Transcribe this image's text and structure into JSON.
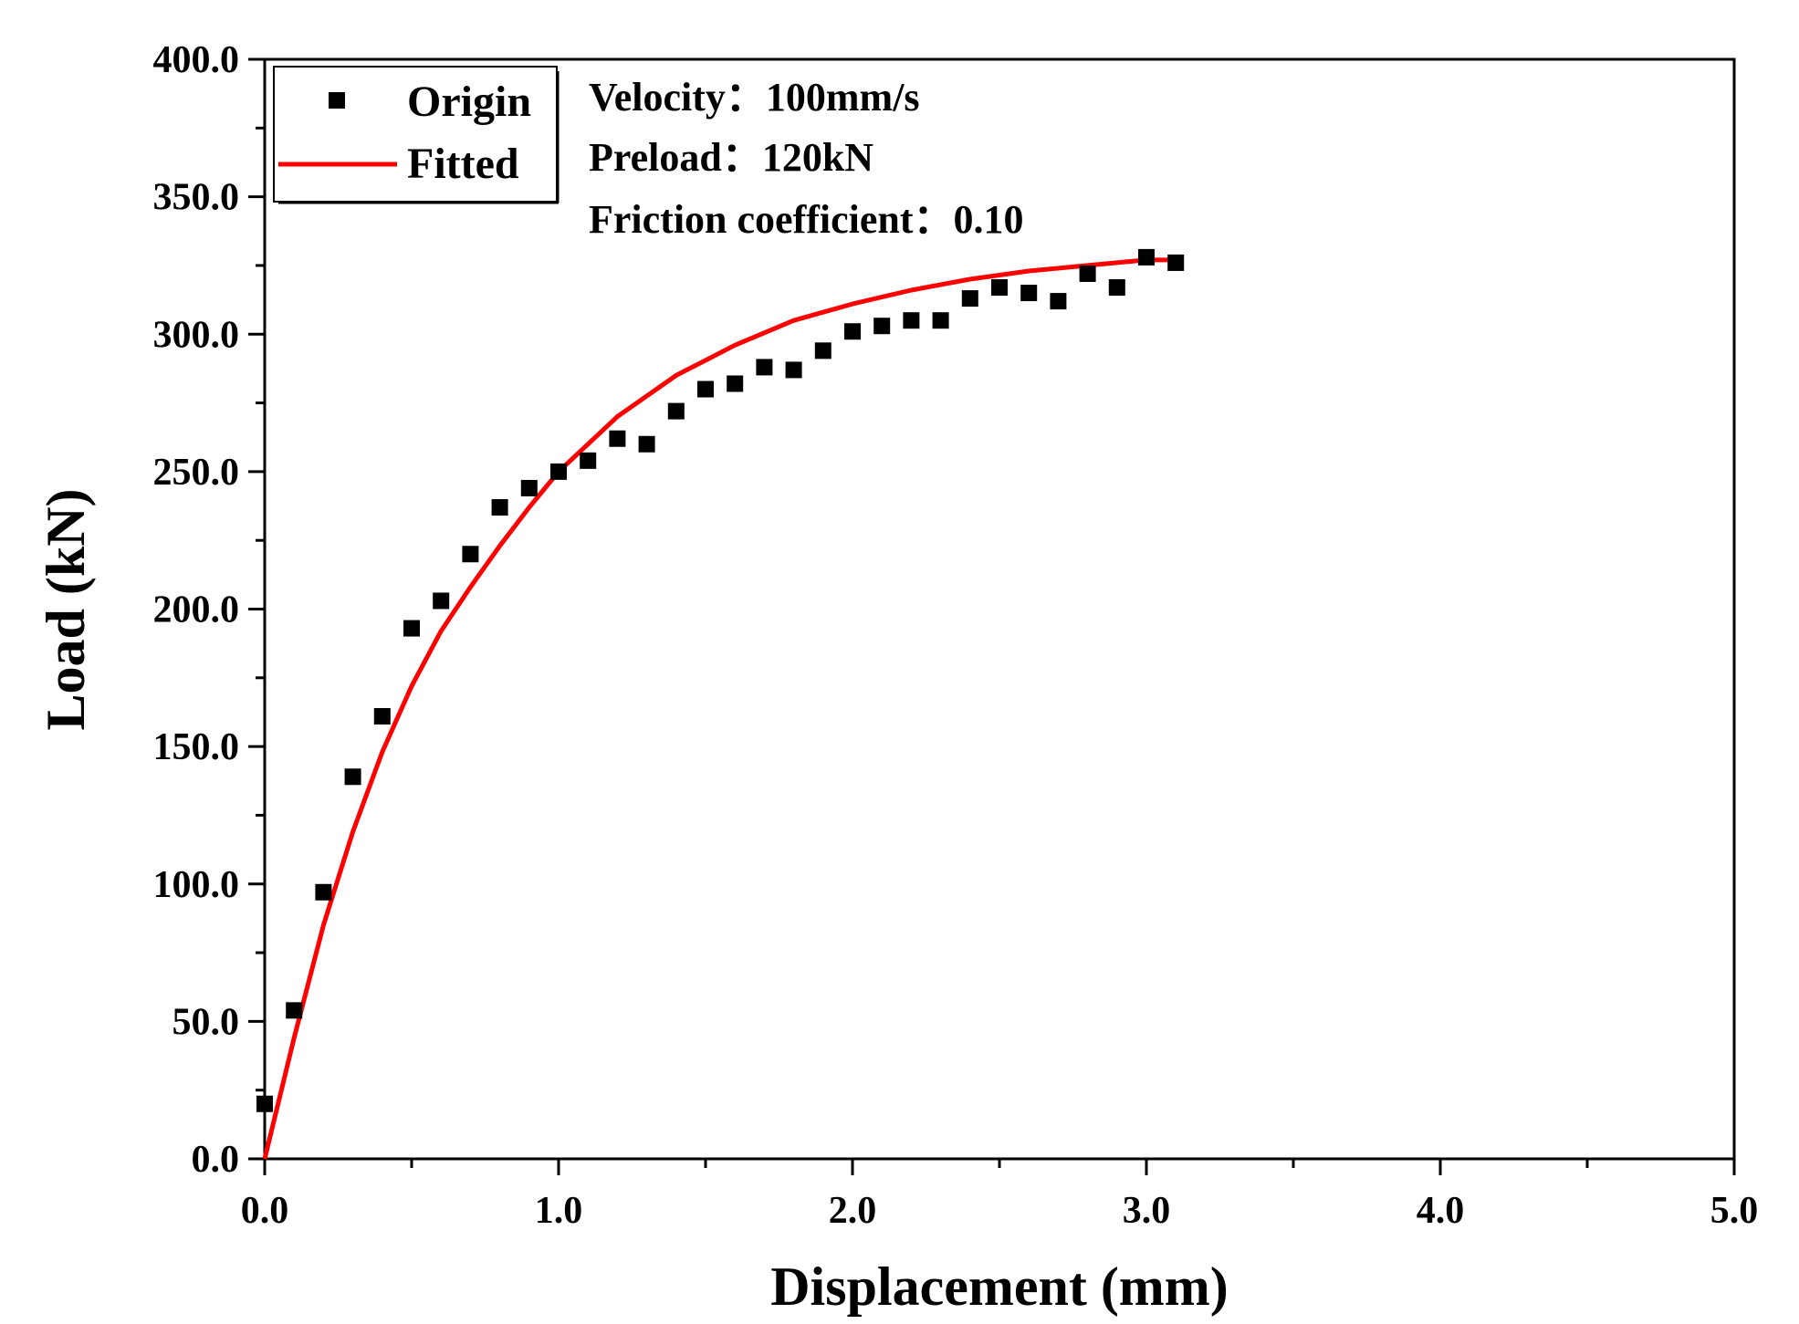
{
  "chart_data": {
    "type": "scatter",
    "title": "",
    "xlabel": "Displacement (mm)",
    "ylabel": "Load (kN)",
    "xlim": [
      0,
      5
    ],
    "ylim": [
      0,
      400
    ],
    "xticks": [
      0,
      1,
      2,
      3,
      4,
      5
    ],
    "xtick_labels": [
      "0.0",
      "1.0",
      "2.0",
      "3.0",
      "4.0",
      "5.0"
    ],
    "yticks": [
      0,
      50,
      100,
      150,
      200,
      250,
      300,
      350,
      400
    ],
    "ytick_labels": [
      "0.0",
      "50.0",
      "100.0",
      "150.0",
      "200.0",
      "250.0",
      "300.0",
      "350.0",
      "400.0"
    ],
    "grid": false,
    "legend_position": "top-left",
    "series": [
      {
        "name": "Origin",
        "kind": "scatter",
        "marker": "square",
        "color": "#000000",
        "x": [
          0.0,
          0.1,
          0.2,
          0.3,
          0.4,
          0.5,
          0.6,
          0.7,
          0.8,
          0.9,
          1.0,
          1.1,
          1.2,
          1.3,
          1.4,
          1.5,
          1.6,
          1.7,
          1.8,
          1.9,
          2.0,
          2.1,
          2.2,
          2.3,
          2.4,
          2.5,
          2.6,
          2.7,
          2.8,
          2.9,
          3.0,
          3.1
        ],
        "y": [
          20,
          54,
          97,
          139,
          161,
          193,
          203,
          220,
          237,
          244,
          250,
          254,
          262,
          260,
          272,
          280,
          282,
          288,
          287,
          294,
          301,
          303,
          305,
          305,
          313,
          317,
          315,
          312,
          322,
          317,
          328,
          326
        ]
      },
      {
        "name": "Fitted",
        "kind": "line",
        "color": "#ff0000",
        "x": [
          0,
          0.1,
          0.2,
          0.3,
          0.4,
          0.5,
          0.6,
          0.7,
          0.8,
          0.9,
          1.0,
          1.2,
          1.4,
          1.6,
          1.8,
          2.0,
          2.2,
          2.4,
          2.6,
          2.8,
          3.0,
          3.1
        ],
        "y": [
          0,
          44,
          85,
          119,
          148,
          172,
          192,
          208,
          223,
          237,
          250,
          270,
          285,
          296,
          305,
          311,
          316,
          320,
          323,
          325,
          327,
          327
        ]
      }
    ],
    "annotations": [
      "Velocity：100mm/s",
      "Preload：120kN",
      "Friction coefficient：0.10"
    ]
  }
}
